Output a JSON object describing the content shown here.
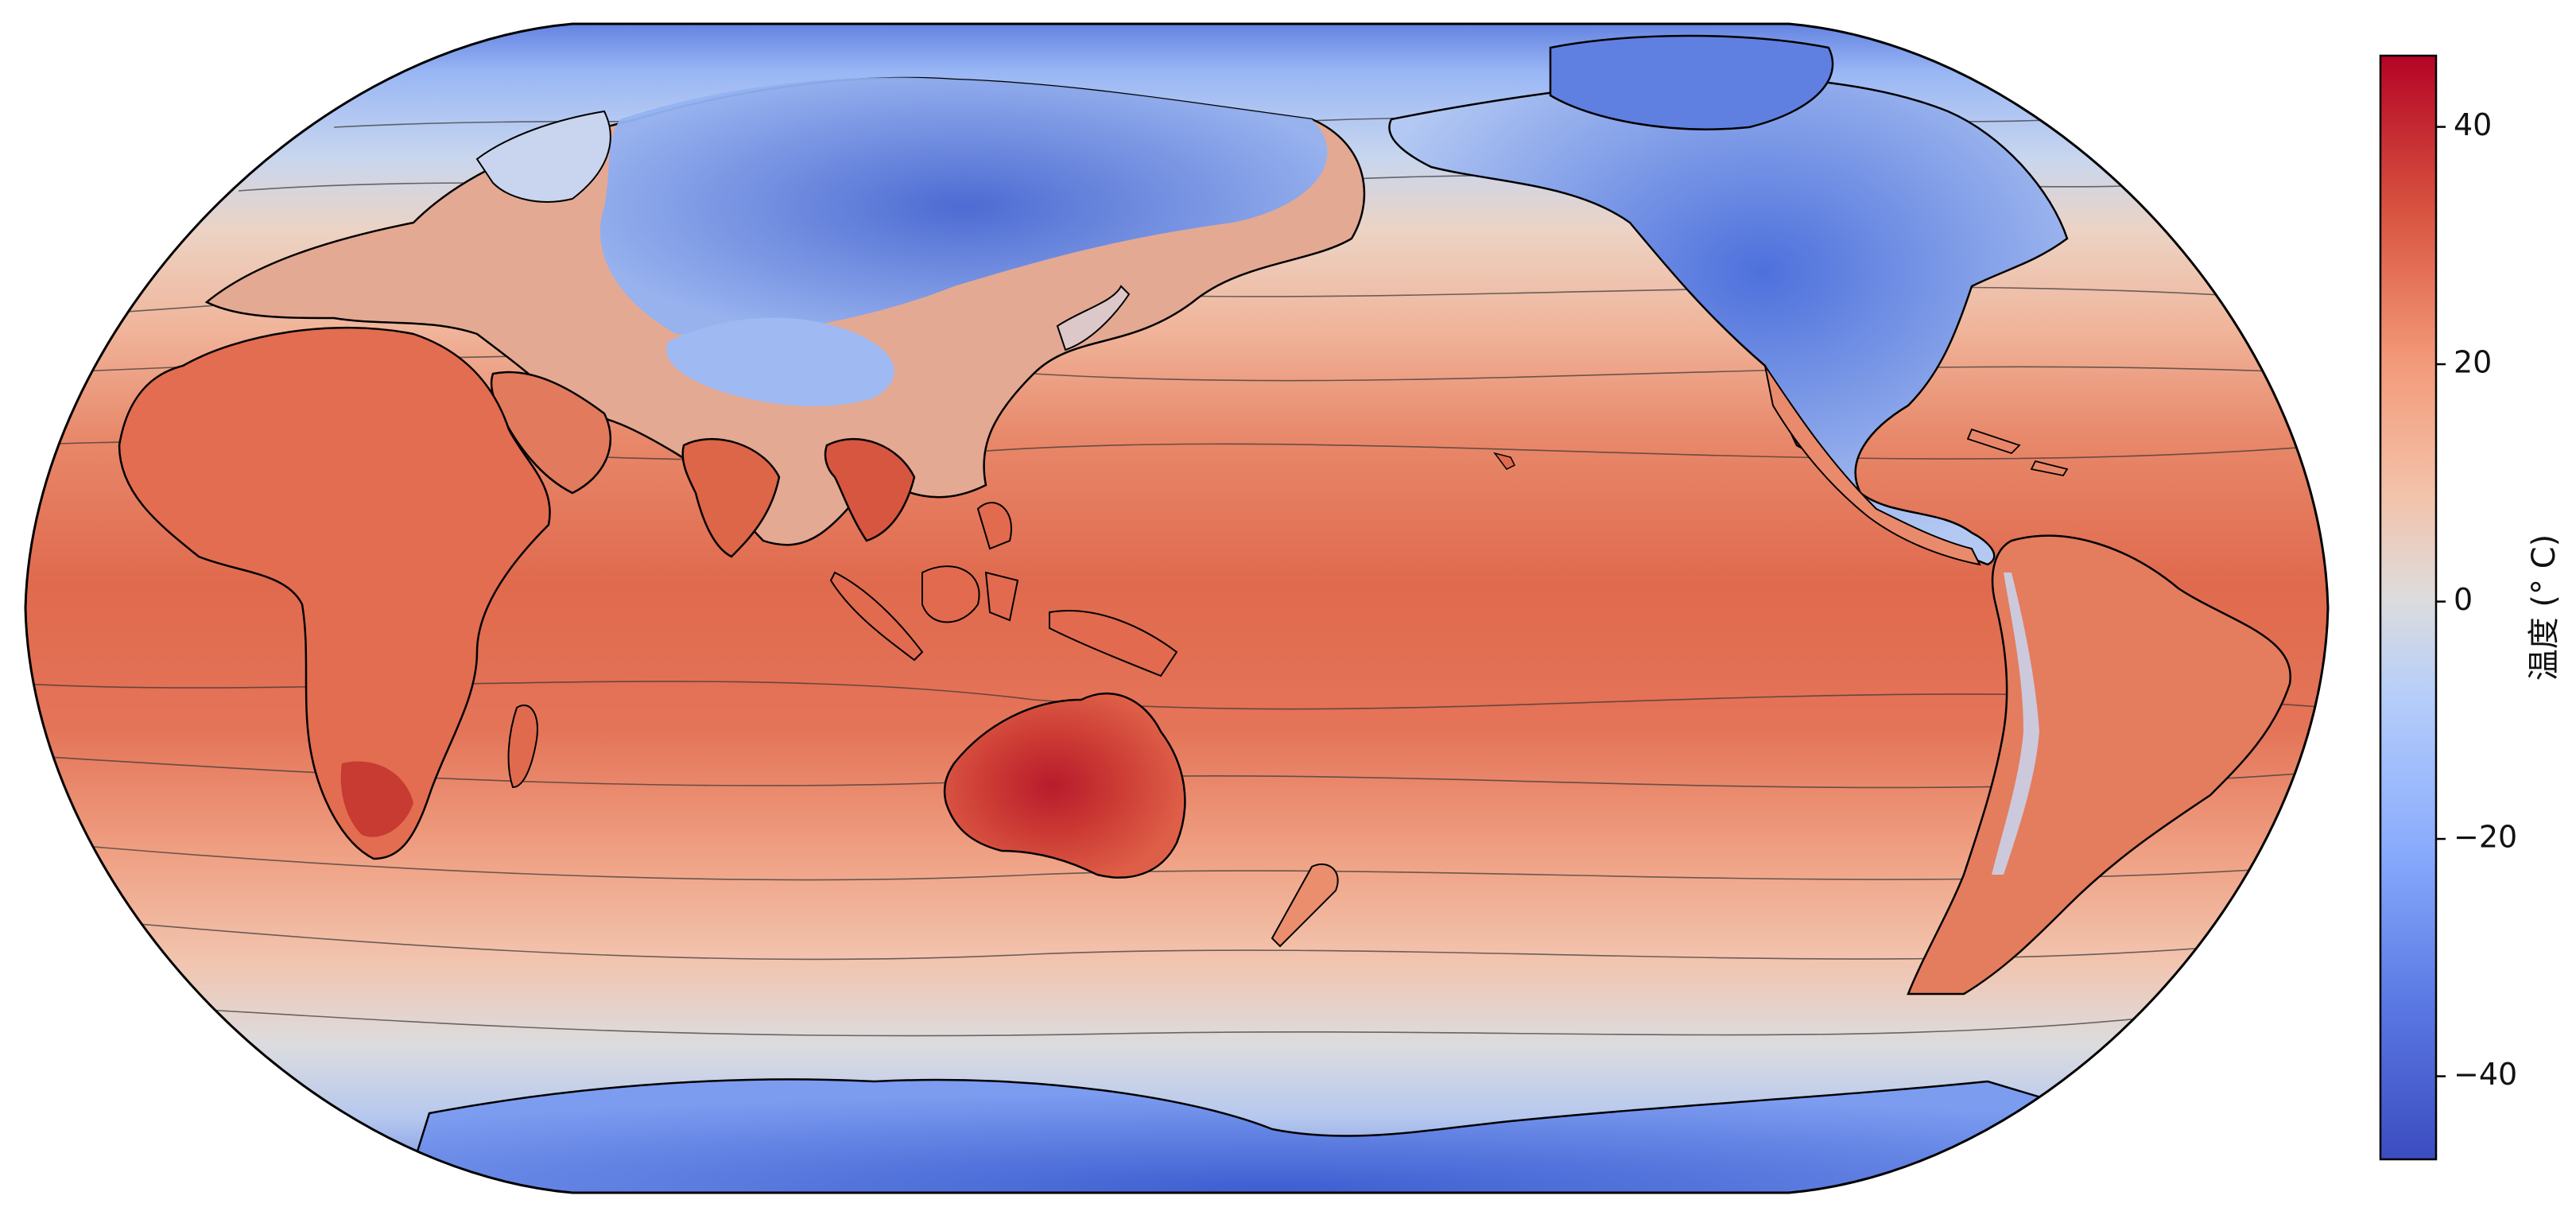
{
  "colorbar": {
    "label": "温度 (° C)",
    "min": -47,
    "max": 46,
    "ticks": [
      {
        "value": 40,
        "label": "40"
      },
      {
        "value": 20,
        "label": "20"
      },
      {
        "value": 0,
        "label": "0"
      },
      {
        "value": -20,
        "label": "−20"
      },
      {
        "value": -40,
        "label": "−40"
      }
    ],
    "colors": [
      "#3b4cc0",
      "#6788ee",
      "#9abbff",
      "#c9d7f0",
      "#edd1c2",
      "#f7a889",
      "#e26952",
      "#b40426"
    ]
  },
  "map": {
    "projection": "Robinson",
    "central_longitude": 150,
    "ocean_base_color": "#e8795c",
    "tropical_band_color": "#e06a4e",
    "polar_color": "#5b7fe2"
  }
}
